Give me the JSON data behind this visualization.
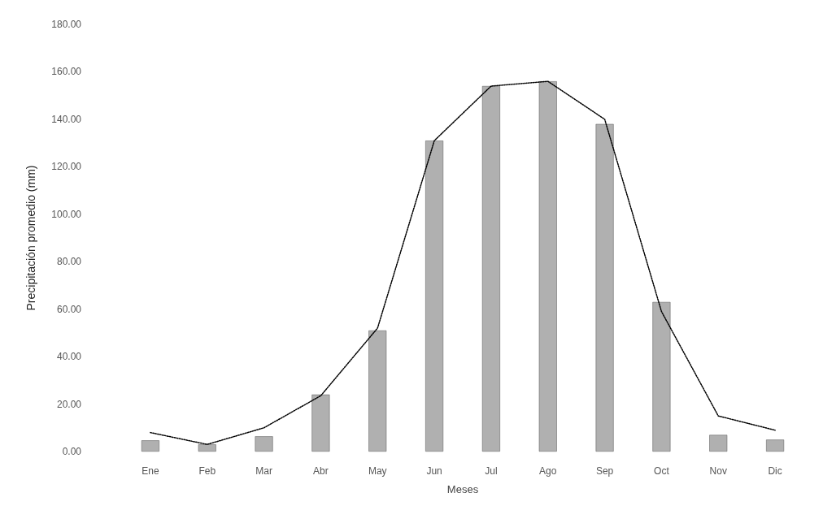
{
  "chart_data": {
    "type": "bar",
    "xlabel": "Meses",
    "ylabel": "Precipitación promedio (mm)",
    "categories": [
      "Ene",
      "Feb",
      "Mar",
      "Abr",
      "May",
      "Jun",
      "Jul",
      "Ago",
      "Sep",
      "Oct",
      "Nov",
      "Dic"
    ],
    "series": [
      {
        "color": "#b0b0b0",
        "values": [
          4.7,
          3,
          6.4,
          24,
          51,
          131,
          154,
          156,
          138,
          63,
          7,
          5
        ]
      },
      {
        "type": "line",
        "color": "#000000",
        "marker": "none",
        "line_style": "dotted",
        "values": [
          8,
          3,
          10,
          23.5,
          52,
          131,
          154,
          156,
          140,
          59,
          15,
          9
        ]
      }
    ],
    "ylim": [
      0,
      180
    ],
    "yticks": [
      {
        "value": 0,
        "label": "0.00"
      },
      {
        "value": 20,
        "label": "20.00"
      },
      {
        "value": 40,
        "label": "40.00"
      },
      {
        "value": 60,
        "label": "60.00"
      },
      {
        "value": 80,
        "label": "80.00"
      },
      {
        "value": 100,
        "label": "100.00"
      },
      {
        "value": 120,
        "label": "120.00"
      },
      {
        "value": 140,
        "label": "140.00"
      },
      {
        "value": 160,
        "label": "160.00"
      },
      {
        "value": 180,
        "label": "180.00"
      }
    ],
    "grid": false
  }
}
